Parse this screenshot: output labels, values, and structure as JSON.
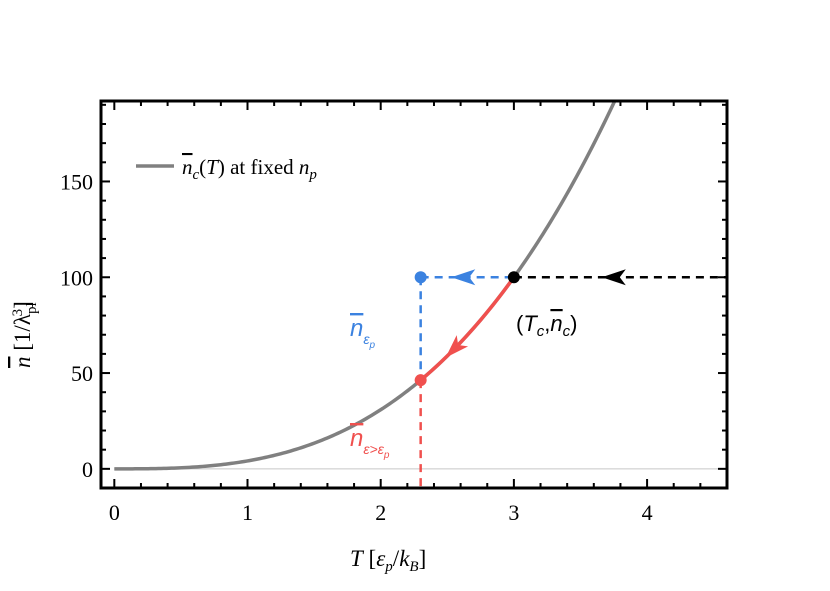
{
  "chart_data": {
    "type": "line",
    "xlabel": "T [εp/kB]",
    "ylabel": "n̄ [1/λpl³]",
    "xlim": [
      -0.1,
      4.6
    ],
    "ylim": [
      -10,
      192
    ],
    "x_ticks": [
      0,
      1,
      2,
      3,
      4
    ],
    "y_ticks": [
      0,
      50,
      100,
      150
    ],
    "grid": false,
    "legend_position": "top-left",
    "series": [
      {
        "name": "n̄c(T) at fixed np",
        "color": "#808080",
        "function": "n̄c = 19.245 · T^1.5 · (1 + 0.20·(T−0.27))·… sampled below",
        "x": [
          0,
          0.25,
          0.5,
          0.75,
          1.0,
          1.25,
          1.5,
          1.75,
          2.0,
          2.25,
          2.5,
          2.75,
          3.0,
          3.25,
          3.5,
          3.75,
          3.83
        ],
        "y": [
          0,
          0.18,
          1.04,
          2.85,
          5.8,
          10.0,
          15.7,
          23.0,
          32.0,
          42.7,
          55.5,
          70.5,
          100,
          118,
          140,
          165,
          191
        ]
      }
    ],
    "points": [
      {
        "x": 3.0,
        "y": 100,
        "color": "#000000"
      },
      {
        "x": 2.3,
        "y": 100,
        "color": "#3b82e0"
      },
      {
        "x": 2.3,
        "y": 51,
        "color": "#f0504e"
      }
    ],
    "annotations": {
      "critical_point": "(Tc,n̄c)",
      "blue_label": "n̄εp",
      "red_label": "n̄ε>εp"
    },
    "colors": {
      "curve": "#808080",
      "blue": "#3b82e0",
      "red": "#f0504e",
      "black": "#000000",
      "zero_line": "#c8c8c8"
    }
  }
}
